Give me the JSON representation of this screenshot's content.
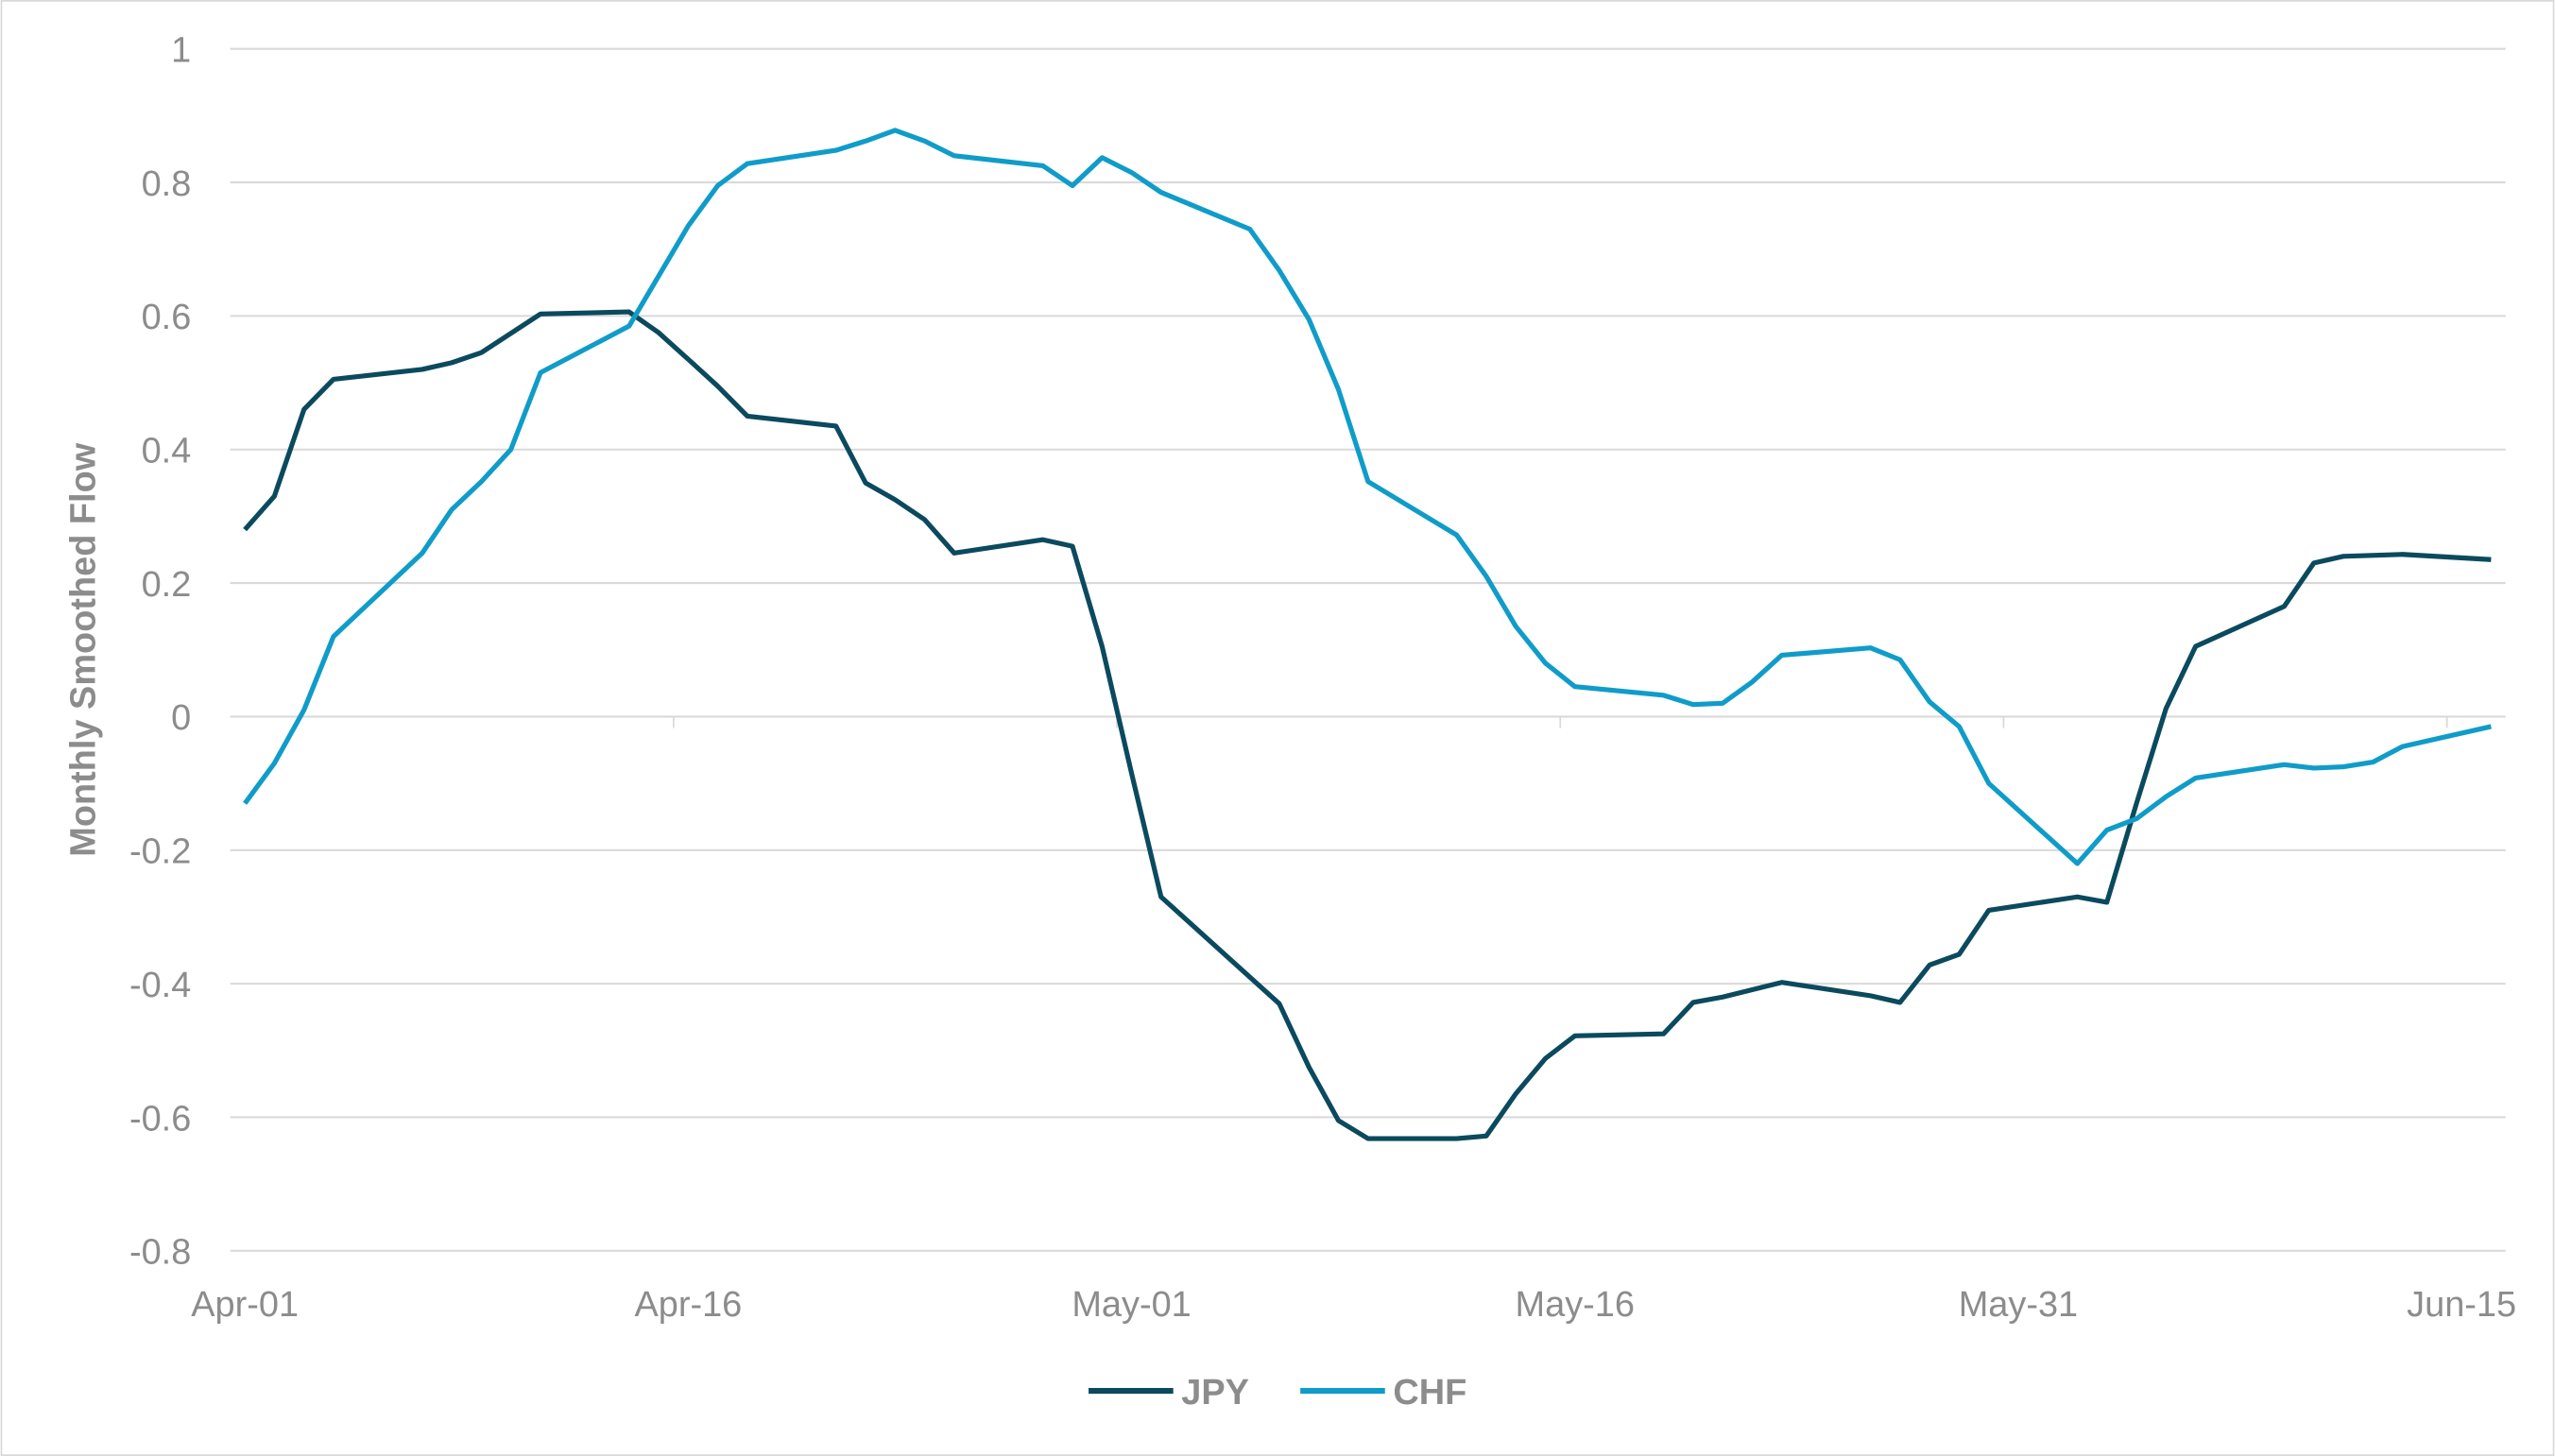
{
  "chart_data": {
    "type": "line",
    "title": "",
    "xlabel": "",
    "ylabel": "Monthly Smoothed Flow",
    "xlim": [
      0,
      76
    ],
    "ylim": [
      -0.8,
      1
    ],
    "yticks": [
      1,
      0.8,
      0.6,
      0.4,
      0.2,
      0,
      -0.2,
      -0.4,
      -0.6,
      -0.8
    ],
    "ytick_labels": [
      "1",
      "0.8",
      "0.6",
      "0.4",
      "0.2",
      "0",
      "-0.2",
      "-0.4",
      "-0.6",
      "-0.8"
    ],
    "xticks": [
      0,
      15,
      30,
      45,
      60,
      75
    ],
    "xtick_labels": [
      "Apr-01",
      "Apr-16",
      "May-01",
      "May-16",
      "May-31",
      "Jun-15"
    ],
    "x_unit": "days since Apr-01",
    "grid": true,
    "legend_position": "bottom-center",
    "series": [
      {
        "name": "JPY",
        "color": "#0b4a5e",
        "x": [
          0,
          1,
          2,
          3,
          6,
          7,
          8,
          10,
          13,
          14,
          15,
          16,
          17,
          20,
          21,
          22,
          23,
          24,
          27,
          28,
          29,
          30,
          31,
          35,
          36,
          37,
          38,
          41,
          42,
          43,
          44,
          45,
          48,
          49,
          50,
          52,
          55,
          56,
          57,
          58,
          59,
          62,
          63,
          64,
          65,
          66,
          69,
          70,
          71,
          73,
          76
        ],
        "y": [
          0.28,
          0.33,
          0.46,
          0.505,
          0.52,
          0.53,
          0.545,
          0.603,
          0.606,
          0.575,
          0.535,
          0.495,
          0.45,
          0.435,
          0.35,
          0.325,
          0.295,
          0.245,
          0.265,
          0.255,
          0.105,
          -0.085,
          -0.27,
          -0.43,
          -0.525,
          -0.605,
          -0.632,
          -0.632,
          -0.628,
          -0.565,
          -0.512,
          -0.478,
          -0.475,
          -0.428,
          -0.42,
          -0.398,
          -0.418,
          -0.428,
          -0.372,
          -0.356,
          -0.29,
          -0.27,
          -0.278,
          -0.13,
          0.012,
          0.105,
          0.165,
          0.23,
          0.24,
          0.243,
          0.235
        ]
      },
      {
        "name": "CHF",
        "color": "#109cc9",
        "x": [
          0,
          1,
          2,
          3,
          6,
          7,
          8,
          9,
          10,
          13,
          14,
          15,
          16,
          17,
          20,
          21,
          22,
          23,
          24,
          27,
          28,
          29,
          30,
          31,
          34,
          35,
          36,
          37,
          38,
          41,
          42,
          43,
          44,
          45,
          48,
          49,
          50,
          51,
          52,
          55,
          56,
          57,
          58,
          59,
          62,
          63,
          64,
          65,
          66,
          69,
          70,
          71,
          72,
          73,
          76
        ],
        "y": [
          -0.13,
          -0.07,
          0.01,
          0.12,
          0.245,
          0.31,
          0.352,
          0.4,
          0.515,
          0.585,
          0.66,
          0.735,
          0.795,
          0.828,
          0.848,
          0.862,
          0.878,
          0.862,
          0.84,
          0.825,
          0.795,
          0.837,
          0.815,
          0.785,
          0.73,
          0.668,
          0.595,
          0.49,
          0.352,
          0.272,
          0.21,
          0.135,
          0.08,
          0.045,
          0.032,
          0.018,
          0.02,
          0.052,
          0.092,
          0.103,
          0.085,
          0.022,
          -0.015,
          -0.1,
          -0.22,
          -0.17,
          -0.153,
          -0.12,
          -0.092,
          -0.072,
          -0.077,
          -0.075,
          -0.068,
          -0.045,
          -0.015
        ]
      }
    ]
  }
}
